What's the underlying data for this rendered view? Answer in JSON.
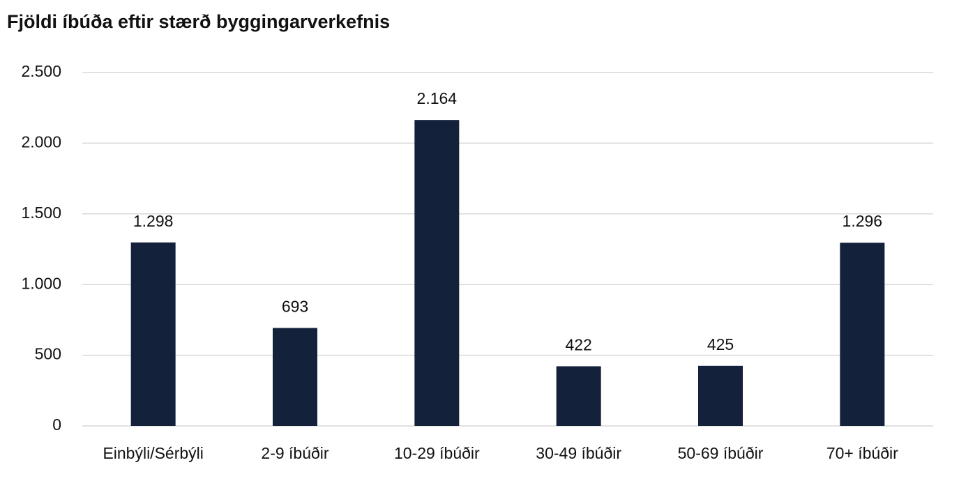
{
  "chart_data": {
    "type": "bar",
    "title": "Fjöldi íbúða eftir stærð byggingarverkefnis",
    "categories": [
      "Einbýli/Sérbýli",
      "2-9 íbúðir",
      "10-29 íbúðir",
      "30-49 íbúðir",
      "50-69 íbúðir",
      "70+ íbúðir"
    ],
    "values": [
      1298,
      693,
      2164,
      422,
      425,
      1296
    ],
    "value_labels": [
      "1.298",
      "693",
      "2.164",
      "422",
      "425",
      "1.296"
    ],
    "color": "#14213a",
    "ylim": [
      0,
      2500
    ],
    "yticks": [
      0,
      500,
      {
        "value": 1000,
        "label": "1.000"
      },
      {
        "value": 1500,
        "label": "1.500"
      },
      {
        "value": 2000,
        "label": "2.000"
      },
      {
        "value": 2500,
        "label": "2.500"
      }
    ],
    "grid": true
  }
}
